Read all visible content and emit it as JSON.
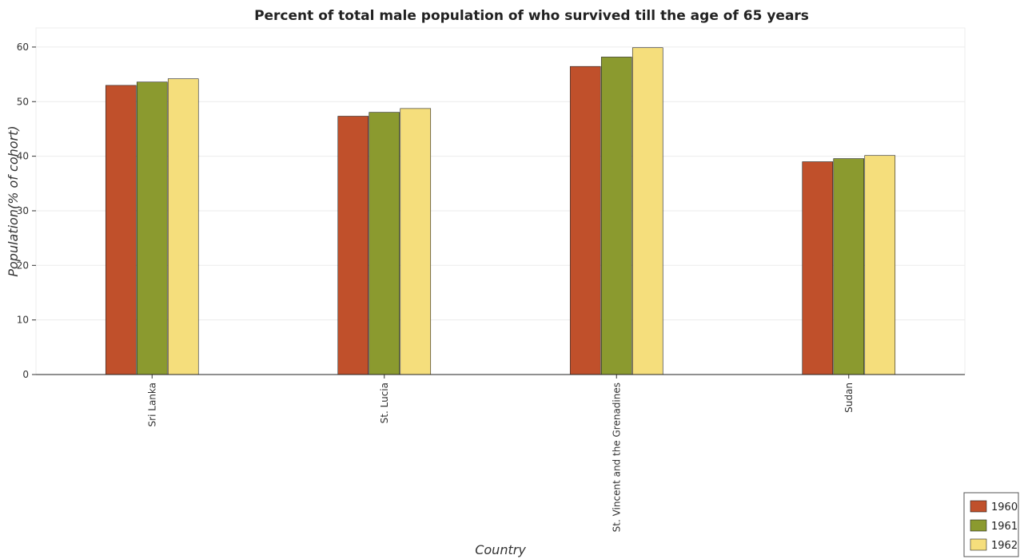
{
  "chart_data": {
    "type": "bar",
    "title": "Percent of total male population of who survived till the age of 65 years",
    "xlabel": "Country",
    "ylabel": "Population(% of cohort)",
    "categories": [
      "Sri Lanka",
      "St. Lucia",
      "St. Vincent and the Grenadines",
      "Sudan"
    ],
    "series": [
      {
        "name": "1960",
        "color": "#c0502b",
        "values": [
          52.98,
          47.33,
          56.45,
          38.99
        ]
      },
      {
        "name": "1961",
        "color": "#8b9a2f",
        "values": [
          53.59,
          48.04,
          58.17,
          39.56
        ]
      },
      {
        "name": "1962",
        "color": "#f5de7c",
        "values": [
          54.19,
          48.74,
          59.88,
          40.13
        ]
      }
    ],
    "ylim": [
      0,
      63.5
    ],
    "yticks": [
      0,
      10,
      20,
      30,
      40,
      50,
      60
    ],
    "grid": true,
    "legend_position": "bottom-right"
  }
}
